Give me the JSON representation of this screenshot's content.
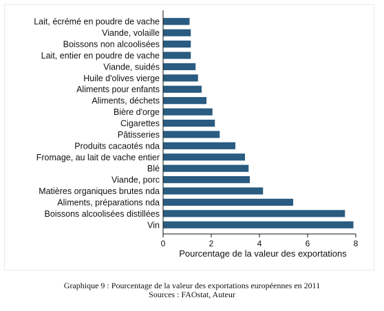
{
  "chart_data": {
    "type": "bar",
    "orientation": "horizontal",
    "categories": [
      "Lait, écrémé en poudre de vache",
      "Viande, volaille",
      "Boissons non alcoolisées",
      "Lait, entier en poudre de vache",
      "Viande, suidés",
      "Huile d'olives vierge",
      "Aliments pour enfants",
      "Aliments, déchets",
      "Bière d'orge",
      "Cigarettes",
      "Pâtisseries",
      "Produits cacaotés nda",
      "Fromage, au lait de vache entier",
      "Blé",
      "Viande, porc",
      "Matières organiques brutes nda",
      "Aliments, préparations nda",
      "Boissons alcoolisées distillées",
      "Vin"
    ],
    "values": [
      1.1,
      1.15,
      1.15,
      1.15,
      1.35,
      1.45,
      1.6,
      1.8,
      2.05,
      2.15,
      2.35,
      3.0,
      3.4,
      3.55,
      3.6,
      4.15,
      5.4,
      7.55,
      7.9
    ],
    "xlabel": "Pourcentage de la valeur des exportations",
    "ylabel": "",
    "xlim": [
      0,
      8
    ],
    "xticks": [
      0,
      2,
      4,
      6,
      8
    ],
    "bar_color": "#2a5b80",
    "grid": false,
    "legend": "none"
  },
  "caption": {
    "line1": "Graphique 9 : Pourcentage de la valeur des exportations  européennes en 2011",
    "line2": "Sources : FAOstat, Auteur"
  }
}
